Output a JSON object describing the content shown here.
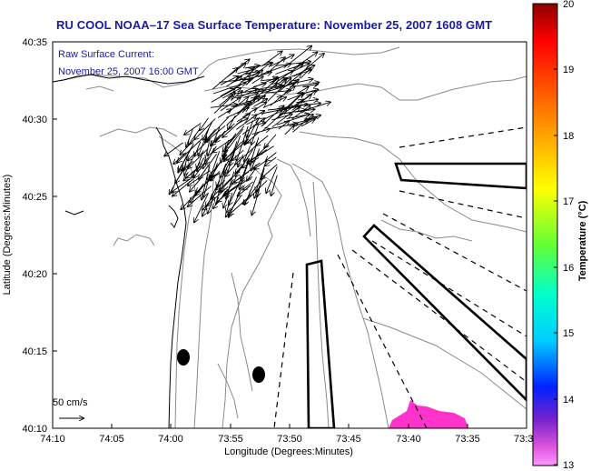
{
  "title": "RU COOL  NOAA–17  Sea Surface Temperature:  November 25, 2007 1608 GMT",
  "current_label_line1": "Raw Surface Current:",
  "current_label_line2": "November 25, 2007 16:00 GMT",
  "scale_label": "50 cm/s",
  "x_axis": {
    "label": "Longitude (Degrees:Minutes)",
    "ticks": [
      "74:10",
      "74:05",
      "74:00",
      "73:55",
      "73:50",
      "73:45",
      "73:40",
      "73:35",
      "73:3"
    ]
  },
  "y_axis": {
    "label": "Latitude (Degrees:Minutes)",
    "ticks": [
      "40:35",
      "40:30",
      "40:25",
      "40:20",
      "40:15",
      "40:10"
    ]
  },
  "colorbar": {
    "label": "Temperature (°C)",
    "ticks": [
      "20",
      "19",
      "18",
      "17",
      "16",
      "15",
      "14",
      "13"
    ],
    "range": [
      13,
      20
    ]
  },
  "colors": {
    "title": "#1a1aa6",
    "contour": "#8a8a8a",
    "sst_patch": "#ff33cc"
  }
}
